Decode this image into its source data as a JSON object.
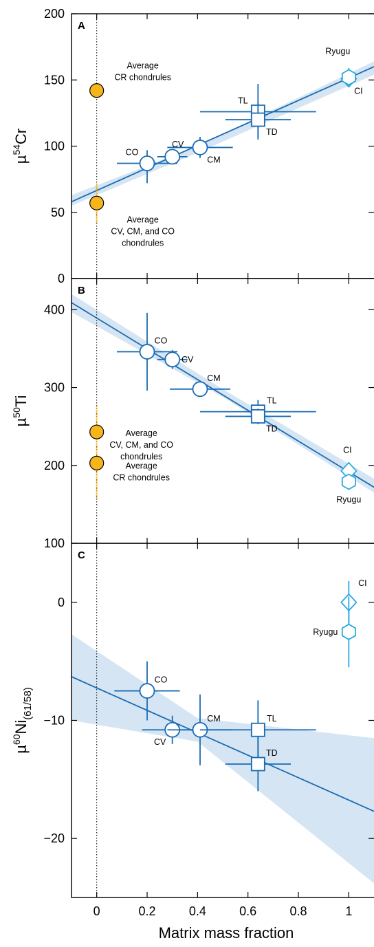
{
  "colors": {
    "fit_line": "#1a6bb3",
    "band": "#c7dcef",
    "marker_edge": "#1a6bb3",
    "ryugu_ci": "#29a9e0",
    "chondrule_fill": "#f7b51c",
    "chondrule_edge": "#000000"
  },
  "x_axis": {
    "label": "Matrix mass fraction",
    "ticks": [
      "0",
      "0.2",
      "0.4",
      "0.6",
      "0.8",
      "1"
    ],
    "range": [
      -0.1,
      1.1
    ]
  },
  "chart_data": [
    {
      "panel": "A",
      "type": "scatter",
      "ylabel_base": "µ",
      "ylabel_sup": "54",
      "ylabel_main": "Cr",
      "ylim": [
        0,
        200
      ],
      "yticks": [
        "0",
        "50",
        "100",
        "150",
        "200"
      ],
      "fit": {
        "x": [
          -0.1,
          1.1
        ],
        "y": [
          58,
          160
        ]
      },
      "band": {
        "x": [
          -0.1,
          0.4,
          1.1
        ],
        "lower": [
          55,
          95,
          154
        ],
        "upper": [
          63,
          100,
          164
        ]
      },
      "points": [
        {
          "name": "CO",
          "x": 0.2,
          "y": 87,
          "xerr": 0.12,
          "yerr_low": 15,
          "yerr_high": 10,
          "marker": "circle",
          "label": "CO",
          "label_pos": "upper-left"
        },
        {
          "name": "CV",
          "x": 0.3,
          "y": 92,
          "xerr": 0.06,
          "yerr_low": 5,
          "yerr_high": 5,
          "marker": "circle",
          "label": "CV",
          "label_pos": "above"
        },
        {
          "name": "CM",
          "x": 0.41,
          "y": 99,
          "xerr": 0.13,
          "yerr_low": 8,
          "yerr_high": 8,
          "marker": "circle",
          "label": "CM",
          "label_pos": "lower-right"
        },
        {
          "name": "TL",
          "x": 0.64,
          "y": 126,
          "xerr": 0.23,
          "yerr_low": 21,
          "yerr_high": 21,
          "marker": "square",
          "label": "TL",
          "label_pos": "upper-left"
        },
        {
          "name": "TD",
          "x": 0.64,
          "y": 120,
          "xerr": 0.13,
          "yerr_low": 13,
          "yerr_high": 13,
          "marker": "square",
          "label": "TD",
          "label_pos": "lower-right"
        },
        {
          "name": "CI",
          "x": 1.0,
          "y": 151,
          "xerr": 0,
          "yerr_low": 6,
          "yerr_high": 6,
          "marker": "diamond",
          "label": "CI",
          "label_pos": "lower-right"
        },
        {
          "name": "Ryugu",
          "x": 1.0,
          "y": 152,
          "xerr": 0,
          "yerr_low": 7,
          "yerr_high": 7,
          "marker": "hexagon",
          "label": "Ryugu",
          "label_pos": "upper"
        }
      ],
      "chondrules": [
        {
          "x": 0,
          "y": 142,
          "yerr_low": 0,
          "yerr_high": 0,
          "label_lines": [
            "Average",
            "CR chondrules"
          ],
          "label_pos": "above"
        },
        {
          "x": 0,
          "y": 57,
          "yerr_low": 15,
          "yerr_high": 15,
          "label_lines": [
            "Average",
            "CV, CM, and CO",
            "chondrules"
          ],
          "label_pos": "below"
        }
      ]
    },
    {
      "panel": "B",
      "type": "scatter",
      "ylabel_base": "µ",
      "ylabel_sup": "50",
      "ylabel_main": "Ti",
      "ylim": [
        100,
        440
      ],
      "yticks": [
        "100",
        "200",
        "300",
        "400"
      ],
      "fit": {
        "x": [
          -0.1,
          1.1
        ],
        "y": [
          409,
          172
        ]
      },
      "band": {
        "x": [
          -0.1,
          0.5,
          1.1
        ],
        "lower": [
          397,
          288,
          165
        ],
        "upper": [
          420,
          298,
          183
        ]
      },
      "points": [
        {
          "name": "CO",
          "x": 0.2,
          "y": 346,
          "xerr": 0.12,
          "yerr_low": 50,
          "yerr_high": 50,
          "marker": "circle",
          "label": "CO",
          "label_pos": "upper-right"
        },
        {
          "name": "CV",
          "x": 0.3,
          "y": 336,
          "xerr": 0.06,
          "yerr_low": 12,
          "yerr_high": 12,
          "marker": "circle",
          "label": "CV",
          "label_pos": "right"
        },
        {
          "name": "CM",
          "x": 0.41,
          "y": 298,
          "xerr": 0.12,
          "yerr_low": 8,
          "yerr_high": 8,
          "marker": "circle",
          "label": "CM",
          "label_pos": "upper-right"
        },
        {
          "name": "TL",
          "x": 0.64,
          "y": 269,
          "xerr": 0.23,
          "yerr_low": 15,
          "yerr_high": 15,
          "marker": "square",
          "label": "TL",
          "label_pos": "upper-right"
        },
        {
          "name": "TD",
          "x": 0.64,
          "y": 263,
          "xerr": 0.13,
          "yerr_low": 10,
          "yerr_high": 10,
          "marker": "square",
          "label": "TD",
          "label_pos": "lower-right"
        },
        {
          "name": "CI",
          "x": 1.0,
          "y": 193,
          "xerr": 0,
          "yerr_low": 8,
          "yerr_high": 8,
          "marker": "diamond",
          "label": "CI",
          "label_pos": "upper"
        },
        {
          "name": "Ryugu",
          "x": 1.0,
          "y": 179,
          "xerr": 0,
          "yerr_low": 10,
          "yerr_high": 10,
          "marker": "hexagon",
          "label": "Ryugu",
          "label_pos": "lower"
        }
      ],
      "chondrules": [
        {
          "x": 0,
          "y": 243,
          "yerr_low": 40,
          "yerr_high": 35,
          "label_lines": [
            "Average",
            "CV, CM, and CO",
            "chondrules"
          ],
          "label_pos": "right"
        },
        {
          "x": 0,
          "y": 203,
          "yerr_low": 45,
          "yerr_high": 0,
          "label_lines": [
            "Average",
            "CR chondrules"
          ],
          "label_pos": "right"
        }
      ]
    },
    {
      "panel": "C",
      "type": "scatter",
      "ylabel_base": "µ",
      "ylabel_sup": "60",
      "ylabel_main": "Ni",
      "ylabel_sub": "(61/58)",
      "ylim": [
        -25,
        5
      ],
      "yticks": [
        "0",
        "−10",
        "−20"
      ],
      "ytick_values": [
        0,
        -10,
        -20
      ],
      "fit": {
        "x": [
          -0.1,
          1.1
        ],
        "y": [
          -6.3,
          -17.7
        ]
      },
      "band": {
        "x": [
          -0.1,
          0.4,
          1.1
        ],
        "lower": [
          -10,
          -11.8,
          -23.8
        ],
        "upper": [
          -2.7,
          -9.8,
          -11.5
        ]
      },
      "points": [
        {
          "name": "CO",
          "x": 0.2,
          "y": -7.5,
          "xerr": 0.13,
          "yerr_low": 2.5,
          "yerr_high": 2.5,
          "marker": "circle",
          "label": "CO",
          "label_pos": "upper-right"
        },
        {
          "name": "CV",
          "x": 0.3,
          "y": -10.8,
          "xerr": 0.12,
          "yerr_low": 1.2,
          "yerr_high": 1.2,
          "marker": "circle",
          "label": "CV",
          "label_pos": "lower-left"
        },
        {
          "name": "CM",
          "x": 0.41,
          "y": -10.8,
          "xerr": 0.13,
          "yerr_low": 3,
          "yerr_high": 3,
          "marker": "circle",
          "label": "CM",
          "label_pos": "upper-right"
        },
        {
          "name": "TL",
          "x": 0.64,
          "y": -10.8,
          "xerr": 0.23,
          "yerr_low": 2.5,
          "yerr_high": 2.5,
          "marker": "square",
          "label": "TL",
          "label_pos": "upper-right"
        },
        {
          "name": "TD",
          "x": 0.64,
          "y": -13.7,
          "xerr": 0.13,
          "yerr_low": 2.3,
          "yerr_high": 2.3,
          "marker": "square",
          "label": "TD",
          "label_pos": "upper-right"
        },
        {
          "name": "CI",
          "x": 1.0,
          "y": 0,
          "xerr": 0,
          "yerr_low": 1.8,
          "yerr_high": 1.8,
          "marker": "diamond",
          "label": "CI",
          "label_pos": "upper-right"
        },
        {
          "name": "Ryugu",
          "x": 1.0,
          "y": -2.5,
          "xerr": 0,
          "yerr_low": 3,
          "yerr_high": 3,
          "marker": "hexagon",
          "label": "Ryugu",
          "label_pos": "left"
        }
      ],
      "chondrules": []
    }
  ]
}
